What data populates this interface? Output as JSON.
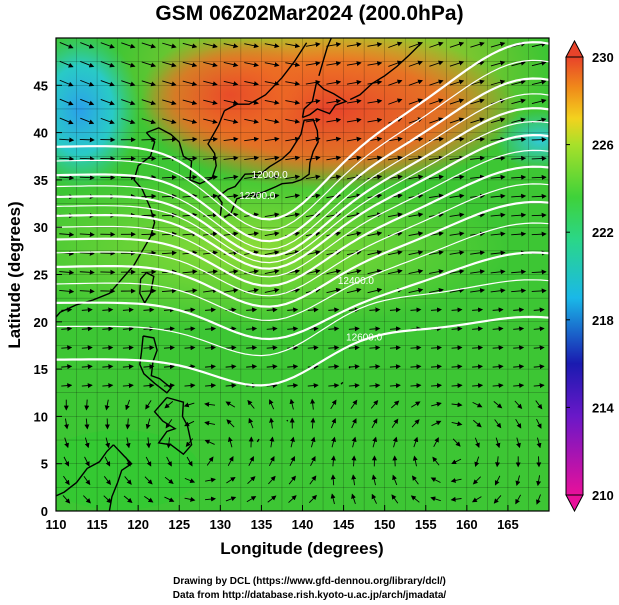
{
  "title": "GSM 06Z02Mar2024 (200.0hPa)",
  "map": {
    "x_axis": {
      "label": "Longitude (degrees)",
      "range": [
        110,
        170
      ],
      "ticks": [
        "110",
        "115",
        "120",
        "125",
        "130",
        "135",
        "140",
        "145",
        "150",
        "155",
        "160",
        "165"
      ]
    },
    "y_axis": {
      "label": "Latitude  (degrees)",
      "range": [
        0,
        50
      ],
      "ticks": [
        "0",
        "5",
        "10",
        "15",
        "20",
        "25",
        "30",
        "35",
        "40",
        "45"
      ]
    },
    "colorbar": {
      "range": [
        210,
        230
      ],
      "tick_labels": [
        "230",
        "226",
        "222",
        "218",
        "214",
        "210"
      ],
      "colors": [
        "#e8109a",
        "#1a1ab0",
        "#1ab8e8",
        "#3fd23a",
        "#f3d21e",
        "#f08a1a",
        "#e8432a"
      ]
    },
    "contour_labels": [
      {
        "text": "12000.0",
        "lon": 136.0,
        "lat": 35.2
      },
      {
        "text": "12200.0",
        "lon": 134.5,
        "lat": 33.0
      },
      {
        "text": "12400.0",
        "lon": 146.5,
        "lat": 24.0
      },
      {
        "text": "12600.0",
        "lon": 147.5,
        "lat": 18.0
      }
    ]
  },
  "footer": {
    "line1": "Drawing by DCL (https://www.gfd-dennou.org/library/dcl/)",
    "line2": "Data from http://database.rish.kyoto-u.ac.jp/arch/jmadata/"
  }
}
